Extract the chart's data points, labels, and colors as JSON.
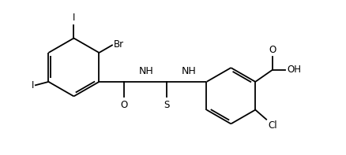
{
  "background_color": "#ffffff",
  "line_color": "#000000",
  "line_width": 1.3,
  "font_size": 8.5,
  "fig_width": 4.39,
  "fig_height": 1.97,
  "dpi": 100,
  "xlim": [
    0,
    10
  ],
  "ylim": [
    0,
    4.5
  ]
}
